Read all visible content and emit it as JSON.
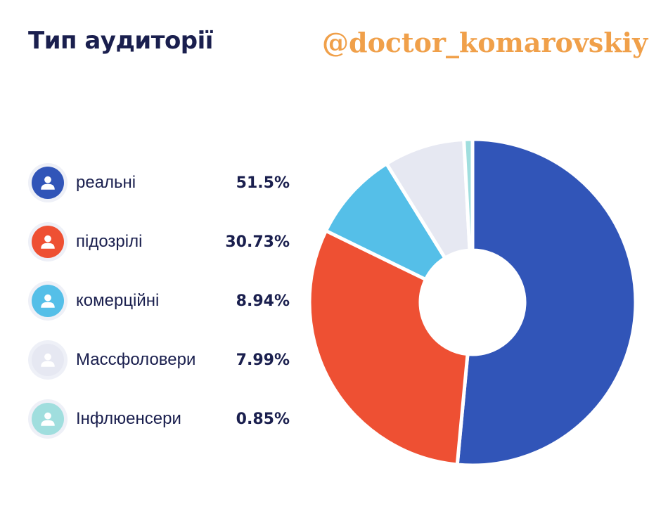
{
  "header": {
    "title": "Тип аудиторії",
    "watermark": "@doctor_komarovskiy"
  },
  "chart_data": {
    "type": "pie",
    "donut": true,
    "legend_position": "left",
    "categories": [
      "реальні",
      "підозрілі",
      "комерційні",
      "Массфоловери",
      "Інфлюенсери"
    ],
    "values": [
      51.5,
      30.73,
      8.94,
      7.99,
      0.85
    ],
    "value_labels": [
      "51.5%",
      "30.73%",
      "8.94%",
      "7.99%",
      "0.85%"
    ],
    "colors": [
      "#3155b8",
      "#ee5033",
      "#55bfe8",
      "#e6e8f2",
      "#a0dede"
    ],
    "icon": "user-icon"
  }
}
